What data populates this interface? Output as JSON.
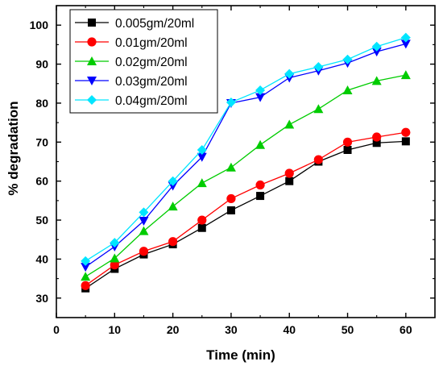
{
  "chart_data": {
    "type": "line",
    "xlabel": "Time (min)",
    "ylabel": "% degradation",
    "xlim": [
      0,
      65
    ],
    "ylim": [
      25,
      105
    ],
    "xticks": [
      0,
      10,
      20,
      30,
      40,
      50,
      60
    ],
    "yticks": [
      30,
      40,
      50,
      60,
      70,
      80,
      90,
      100
    ],
    "grid": false,
    "legend_position": "top-left",
    "x": [
      5,
      10,
      15,
      20,
      25,
      30,
      35,
      40,
      45,
      50,
      55,
      60
    ],
    "series": [
      {
        "name": "0.005gm/20ml",
        "color": "#000000",
        "marker": "square",
        "values": [
          32.5,
          37.5,
          41.2,
          43.8,
          48.0,
          52.5,
          56.2,
          60.0,
          65.0,
          68.0,
          69.8,
          70.2
        ]
      },
      {
        "name": "0.01gm/20ml",
        "color": "#ff0000",
        "marker": "circle",
        "values": [
          33.2,
          38.5,
          42.0,
          44.5,
          50.0,
          55.5,
          59.0,
          62.0,
          65.5,
          70.0,
          71.3,
          72.5
        ]
      },
      {
        "name": "0.02gm/20ml",
        "color": "#00cc00",
        "marker": "triangle-up",
        "values": [
          35.5,
          40.2,
          47.2,
          53.5,
          59.5,
          63.5,
          69.3,
          74.5,
          78.5,
          83.3,
          85.7,
          87.2
        ]
      },
      {
        "name": "0.03gm/20ml",
        "color": "#0000ff",
        "marker": "triangle-down",
        "values": [
          38.0,
          43.2,
          49.8,
          58.8,
          66.2,
          80.0,
          81.5,
          86.5,
          88.3,
          90.3,
          93.2,
          95.2
        ]
      },
      {
        "name": "0.04gm/20ml",
        "color": "#00e5ff",
        "marker": "diamond",
        "values": [
          39.5,
          44.2,
          52.0,
          60.0,
          68.0,
          80.2,
          83.3,
          87.5,
          89.3,
          91.2,
          94.5,
          96.8
        ]
      }
    ]
  }
}
